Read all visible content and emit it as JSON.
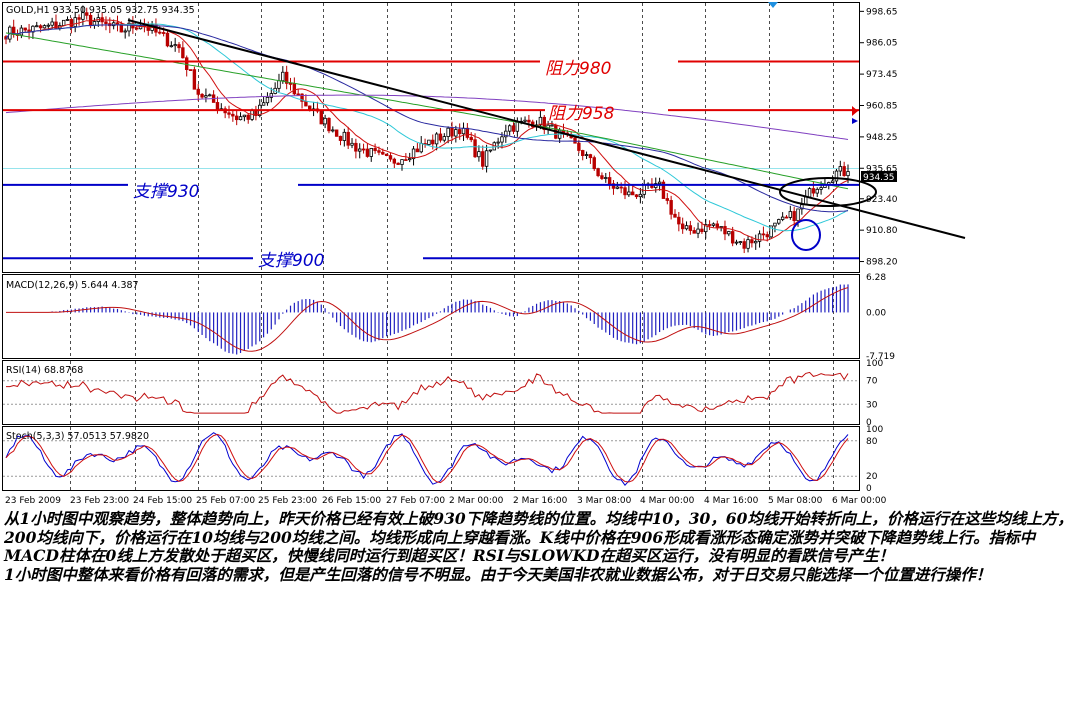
{
  "title": "GOLD,H1  933.50 935.05 932.75 934.35",
  "colors": {
    "bull": "#000000",
    "bear": "#b80000",
    "ma10": "#d01010",
    "ma30": "#2ec8d8",
    "ma60": "#2a2aa0",
    "ma200": "#28a028",
    "ma_long": "#8040c0",
    "resistance": "#e00000",
    "support": "#0000c8",
    "trendline": "#000000",
    "macd_hist": "#2020c0",
    "macd_signal": "#c01010",
    "rsi": "#c01010",
    "stoch_main": "#0000d0",
    "stoch_signal": "#d01010",
    "grid": "#000000",
    "price_tag_bg": "#000000",
    "price_tag_fg": "#ffffff"
  },
  "chart_data": [
    {
      "type": "candlestick",
      "title": "GOLD,H1  933.50 935.05 932.75 934.35",
      "ylim": [
        894.0,
        1002.0
      ],
      "y_ticks": [
        "998.65",
        "986.05",
        "973.45",
        "960.85",
        "948.25",
        "935.65",
        "923.40",
        "910.80",
        "898.20"
      ],
      "last_price": "934.35",
      "overlays": [
        "MA10",
        "MA30",
        "MA60",
        "MA200",
        "MA long"
      ],
      "annotations": {
        "resistance_980": {
          "label": "阻力980",
          "value": 978.5
        },
        "resistance_958": {
          "label": "阻力958",
          "value": 959.0
        },
        "support_930": {
          "label": "支撑930",
          "value": 929.0
        },
        "support_900": {
          "label": "支撑900",
          "value": 899.5
        }
      }
    },
    {
      "type": "bar",
      "title": "MACD(12,26,9) 5.644 4.387",
      "ylim": [
        -7.719,
        6.28
      ],
      "y_ticks": [
        "6.28",
        "0.00",
        "-7.719"
      ]
    },
    {
      "type": "line",
      "title": "RSI(14) 68.8768",
      "ylim": [
        0,
        100
      ],
      "y_ticks": [
        "100",
        "70",
        "30",
        "0"
      ]
    },
    {
      "type": "line",
      "title": "Stoch(5,3,3) 57.0513 57.9820",
      "ylim": [
        0,
        100
      ],
      "y_ticks": [
        "100",
        "80",
        "20",
        "0"
      ]
    }
  ],
  "x_tick_labels": [
    "23 Feb 2009",
    "23 Feb 23:00",
    "24 Feb 15:00",
    "25 Feb 07:00",
    "25 Feb 23:00",
    "26 Feb 15:00",
    "27 Feb 07:00",
    "2 Mar 00:00",
    "2 Mar 16:00",
    "3 Mar 08:00",
    "4 Mar 00:00",
    "4 Mar 16:00",
    "5 Mar 08:00",
    "6 Mar 00:00"
  ],
  "commentary": [
    "从1小时图中观察趋势，整体趋势向上，昨天价格已经有效上破930下降趋势线的位置。均线中10，30，60均线开始转折向上，价格运行在这些均线上方，200均线向下，价格运行在10均线与200均线之间。均线形成向上穿越看涨。K线中价格在906形成看涨形态确定涨势并突破下降趋势线上行。指标中MACD柱体在0线上方发散处于超买区，快慢线同时运行到超买区！RSI与SLOWKD在超买区运行，没有明显的看跌信号产生！",
    "1小时图中整体来看价格有回落的需求，但是产生回落的信号不明显。由于今天美国非农就业数据公布，对于日交易只能选择一个位置进行操作！"
  ]
}
